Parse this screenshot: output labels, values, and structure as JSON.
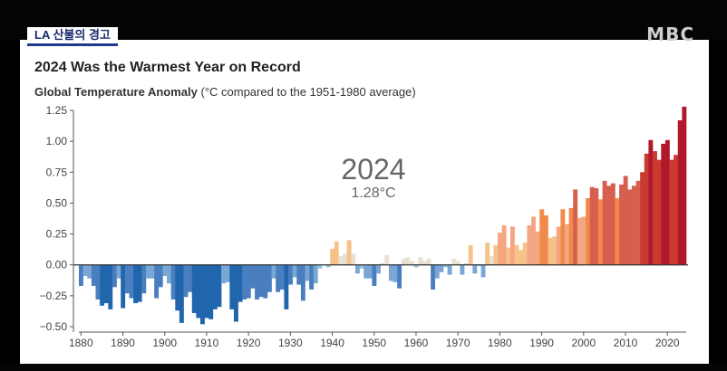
{
  "banner": {
    "tag": "LA 산불의 경고",
    "logo": "MBC"
  },
  "chart_data": {
    "type": "bar",
    "title": "2024 Was the Warmest Year on Record",
    "subtitle_bold": "Global Temperature Anomaly",
    "subtitle_rest": " (°C compared to the 1951-1980 average)",
    "xlabel": "",
    "ylabel": "",
    "xlim": [
      1880,
      2024
    ],
    "ylim": [
      -0.5,
      1.25
    ],
    "yticks": [
      "1.25",
      "1.00",
      "0.75",
      "0.50",
      "0.25",
      "0.00",
      "−0.25",
      "−0.50"
    ],
    "xticks": [
      "1880",
      "1890",
      "1900",
      "1910",
      "1920",
      "1930",
      "1940",
      "1950",
      "1960",
      "1970",
      "1980",
      "1990",
      "2000",
      "2010",
      "2020"
    ],
    "annotation": {
      "year": "2024",
      "value": "1.28°C"
    },
    "x": [
      1880,
      1881,
      1882,
      1883,
      1884,
      1885,
      1886,
      1887,
      1888,
      1889,
      1890,
      1891,
      1892,
      1893,
      1894,
      1895,
      1896,
      1897,
      1898,
      1899,
      1900,
      1901,
      1902,
      1903,
      1904,
      1905,
      1906,
      1907,
      1908,
      1909,
      1910,
      1911,
      1912,
      1913,
      1914,
      1915,
      1916,
      1917,
      1918,
      1919,
      1920,
      1921,
      1922,
      1923,
      1924,
      1925,
      1926,
      1927,
      1928,
      1929,
      1930,
      1931,
      1932,
      1933,
      1934,
      1935,
      1936,
      1937,
      1938,
      1939,
      1940,
      1941,
      1942,
      1943,
      1944,
      1945,
      1946,
      1947,
      1948,
      1949,
      1950,
      1951,
      1952,
      1953,
      1954,
      1955,
      1956,
      1957,
      1958,
      1959,
      1960,
      1961,
      1962,
      1963,
      1964,
      1965,
      1966,
      1967,
      1968,
      1969,
      1970,
      1971,
      1972,
      1973,
      1974,
      1975,
      1976,
      1977,
      1978,
      1979,
      1980,
      1981,
      1982,
      1983,
      1984,
      1985,
      1986,
      1987,
      1988,
      1989,
      1990,
      1991,
      1992,
      1993,
      1994,
      1995,
      1996,
      1997,
      1998,
      1999,
      2000,
      2001,
      2002,
      2003,
      2004,
      2005,
      2006,
      2007,
      2008,
      2009,
      2010,
      2011,
      2012,
      2013,
      2014,
      2015,
      2016,
      2017,
      2018,
      2019,
      2020,
      2021,
      2022,
      2023,
      2024
    ],
    "values": [
      -0.17,
      -0.09,
      -0.11,
      -0.17,
      -0.28,
      -0.33,
      -0.31,
      -0.36,
      -0.18,
      -0.11,
      -0.35,
      -0.23,
      -0.27,
      -0.31,
      -0.3,
      -0.23,
      -0.11,
      -0.11,
      -0.27,
      -0.18,
      -0.09,
      -0.15,
      -0.28,
      -0.37,
      -0.47,
      -0.26,
      -0.22,
      -0.39,
      -0.43,
      -0.48,
      -0.43,
      -0.44,
      -0.36,
      -0.34,
      -0.15,
      -0.14,
      -0.36,
      -0.46,
      -0.3,
      -0.28,
      -0.27,
      -0.19,
      -0.28,
      -0.26,
      -0.27,
      -0.22,
      -0.11,
      -0.22,
      -0.2,
      -0.36,
      -0.16,
      -0.1,
      -0.16,
      -0.29,
      -0.13,
      -0.2,
      -0.15,
      -0.03,
      0.0,
      -0.02,
      0.13,
      0.19,
      0.07,
      0.09,
      0.2,
      0.09,
      -0.07,
      -0.03,
      -0.11,
      -0.11,
      -0.17,
      -0.07,
      0.01,
      0.08,
      -0.13,
      -0.14,
      -0.19,
      0.05,
      0.06,
      0.03,
      -0.02,
      0.06,
      0.03,
      0.05,
      -0.2,
      -0.11,
      -0.06,
      -0.02,
      -0.08,
      0.05,
      0.03,
      -0.08,
      0.01,
      0.16,
      -0.07,
      -0.01,
      -0.1,
      0.18,
      0.07,
      0.16,
      0.26,
      0.32,
      0.14,
      0.31,
      0.16,
      0.12,
      0.18,
      0.32,
      0.39,
      0.27,
      0.45,
      0.4,
      0.22,
      0.23,
      0.31,
      0.45,
      0.33,
      0.46,
      0.61,
      0.38,
      0.39,
      0.54,
      0.63,
      0.62,
      0.53,
      0.68,
      0.64,
      0.66,
      0.54,
      0.65,
      0.72,
      0.61,
      0.64,
      0.68,
      0.75,
      0.9,
      1.01,
      0.92,
      0.85,
      0.98,
      1.01,
      0.85,
      0.89,
      1.17,
      1.28
    ],
    "colors": {
      "cold": "#2166ac",
      "cool": "#92c5de",
      "neutral": "#e8e0d0",
      "warm": "#f4a582",
      "hot": "#d6604d",
      "hottest": "#b2182b"
    }
  }
}
